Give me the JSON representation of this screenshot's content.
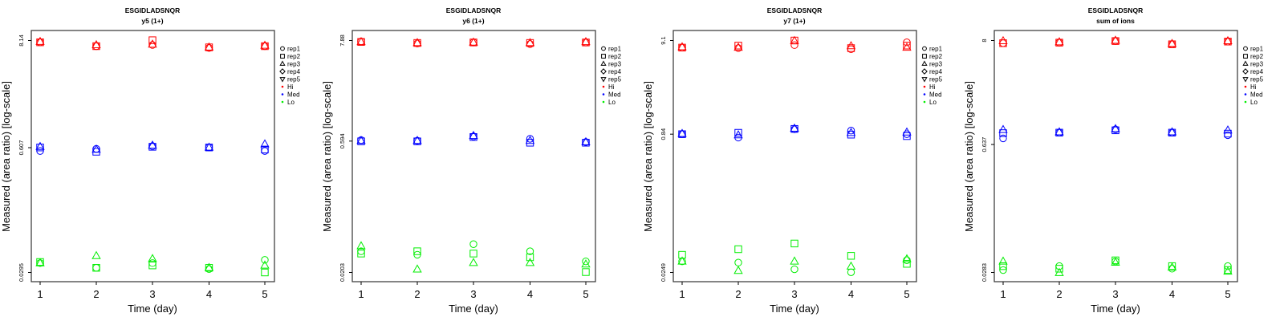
{
  "colors": {
    "Hi": "#ff0000",
    "Med": "#0000ff",
    "Lo": "#00ee00"
  },
  "legend": [
    {
      "label": "rep1",
      "symbol": "circle"
    },
    {
      "label": "rep2",
      "symbol": "square"
    },
    {
      "label": "rep3",
      "symbol": "triangle-up"
    },
    {
      "label": "rep4",
      "symbol": "diamond"
    },
    {
      "label": "rep5",
      "symbol": "triangle-down"
    },
    {
      "label": "Hi",
      "symbol": "dot",
      "group": "Hi"
    },
    {
      "label": "Med",
      "symbol": "dot",
      "group": "Med"
    },
    {
      "label": "Lo",
      "symbol": "dot",
      "group": "Lo"
    }
  ],
  "chart_data": [
    {
      "type": "scatter",
      "title": "ESGIDLADSNQR",
      "subtitle": "y5 (1+)",
      "xlabel": "Time (day)",
      "ylabel": "Measured (area ratio) [log-scale]",
      "yscale": "log",
      "x": [
        1,
        2,
        3,
        4,
        5
      ],
      "x_tick_labels": [
        "1",
        "2",
        "3",
        "4",
        "5"
      ],
      "y_ticks": [
        0.0295,
        0.607,
        8.14
      ],
      "y_tick_labels": [
        "0.0295",
        "0.607",
        "8.14"
      ],
      "legend_position": "right",
      "series": [
        {
          "group": "Hi",
          "rep": "rep1",
          "values": [
            7.8,
            7.1,
            7.3,
            6.8,
            7.1
          ]
        },
        {
          "group": "Hi",
          "rep": "rep2",
          "values": [
            7.8,
            7.1,
            8.2,
            6.9,
            7.1
          ]
        },
        {
          "group": "Hi",
          "rep": "rep3",
          "values": [
            7.9,
            7.3,
            7.4,
            6.9,
            7.2
          ]
        },
        {
          "group": "Med",
          "rep": "rep1",
          "values": [
            0.56,
            0.59,
            0.63,
            0.61,
            0.56
          ]
        },
        {
          "group": "Med",
          "rep": "rep2",
          "values": [
            0.61,
            0.55,
            0.62,
            0.61,
            0.58
          ]
        },
        {
          "group": "Med",
          "rep": "rep3",
          "values": [
            0.62,
            0.58,
            0.64,
            0.61,
            0.66
          ]
        },
        {
          "group": "Lo",
          "rep": "rep1",
          "values": [
            0.037,
            0.033,
            0.037,
            0.032,
            0.04
          ]
        },
        {
          "group": "Lo",
          "rep": "rep2",
          "values": [
            0.038,
            0.033,
            0.035,
            0.033,
            0.0295
          ]
        },
        {
          "group": "Lo",
          "rep": "rep3",
          "values": [
            0.037,
            0.044,
            0.041,
            0.033,
            0.035
          ]
        }
      ]
    },
    {
      "type": "scatter",
      "title": "ESGIDLADSNQR",
      "subtitle": "y6 (1+)",
      "xlabel": "Time (day)",
      "ylabel": "Measured (area ratio) [log-scale]",
      "yscale": "log",
      "x": [
        1,
        2,
        3,
        4,
        5
      ],
      "x_tick_labels": [
        "1",
        "2",
        "3",
        "4",
        "5"
      ],
      "y_ticks": [
        0.0203,
        0.594,
        7.88
      ],
      "y_tick_labels": [
        "0.0203",
        "0.594",
        "7.88"
      ],
      "legend_position": "right",
      "series": [
        {
          "group": "Hi",
          "rep": "rep1",
          "values": [
            7.7,
            7.3,
            7.5,
            7.2,
            7.5
          ]
        },
        {
          "group": "Hi",
          "rep": "rep2",
          "values": [
            7.6,
            7.4,
            7.5,
            7.4,
            7.5
          ]
        },
        {
          "group": "Hi",
          "rep": "rep3",
          "values": [
            7.6,
            7.4,
            7.5,
            7.4,
            7.6
          ]
        },
        {
          "group": "Med",
          "rep": "rep1",
          "values": [
            0.61,
            0.6,
            0.67,
            0.63,
            0.58
          ]
        },
        {
          "group": "Med",
          "rep": "rep2",
          "values": [
            0.59,
            0.59,
            0.66,
            0.57,
            0.57
          ]
        },
        {
          "group": "Med",
          "rep": "rep3",
          "values": [
            0.6,
            0.6,
            0.68,
            0.6,
            0.58
          ]
        },
        {
          "group": "Lo",
          "rep": "rep1",
          "values": [
            0.035,
            0.032,
            0.042,
            0.035,
            0.027
          ]
        },
        {
          "group": "Lo",
          "rep": "rep2",
          "values": [
            0.033,
            0.035,
            0.033,
            0.03,
            0.0205
          ]
        },
        {
          "group": "Lo",
          "rep": "rep3",
          "values": [
            0.04,
            0.022,
            0.026,
            0.026,
            0.025
          ]
        }
      ]
    },
    {
      "type": "scatter",
      "title": "ESGIDLADSNQR",
      "subtitle": "y7 (1+)",
      "xlabel": "Time (day)",
      "ylabel": "Measured (area ratio) [log-scale]",
      "yscale": "log",
      "x": [
        1,
        2,
        3,
        4,
        5
      ],
      "x_tick_labels": [
        "1",
        "2",
        "3",
        "4",
        "5"
      ],
      "y_ticks": [
        0.0249,
        0.84,
        9.1
      ],
      "y_tick_labels": [
        "0.0249",
        "0.84",
        "9.1"
      ],
      "legend_position": "right",
      "series": [
        {
          "group": "Hi",
          "rep": "rep1",
          "values": [
            7.6,
            7.5,
            8.1,
            7.3,
            8.7
          ]
        },
        {
          "group": "Hi",
          "rep": "rep2",
          "values": [
            7.6,
            8.0,
            9.1,
            7.5,
            8.0
          ]
        },
        {
          "group": "Hi",
          "rep": "rep3",
          "values": [
            7.7,
            7.6,
            9.0,
            7.9,
            7.6
          ]
        },
        {
          "group": "Med",
          "rep": "rep1",
          "values": [
            0.84,
            0.77,
            0.95,
            0.92,
            0.84
          ]
        },
        {
          "group": "Med",
          "rep": "rep2",
          "values": [
            0.84,
            0.87,
            0.96,
            0.83,
            0.8
          ]
        },
        {
          "group": "Med",
          "rep": "rep3",
          "values": [
            0.85,
            0.82,
            0.97,
            0.87,
            0.88
          ]
        },
        {
          "group": "Lo",
          "rep": "rep1",
          "values": [
            0.033,
            0.032,
            0.027,
            0.025,
            0.034
          ]
        },
        {
          "group": "Lo",
          "rep": "rep2",
          "values": [
            0.039,
            0.045,
            0.052,
            0.038,
            0.031
          ]
        },
        {
          "group": "Lo",
          "rep": "rep3",
          "values": [
            0.033,
            0.026,
            0.033,
            0.029,
            0.035
          ]
        }
      ]
    },
    {
      "type": "scatter",
      "title": "ESGIDLADSNQR",
      "subtitle": "sum of ions",
      "xlabel": "Time (day)",
      "ylabel": "Measured (area ratio) [log-scale]",
      "yscale": "log",
      "x": [
        1,
        2,
        3,
        4,
        5
      ],
      "x_tick_labels": [
        "1",
        "2",
        "3",
        "4",
        "5"
      ],
      "y_ticks": [
        0.0283,
        0.637,
        8
      ],
      "y_tick_labels": [
        "0.0283",
        "0.637",
        "8"
      ],
      "legend_position": "right",
      "series": [
        {
          "group": "Hi",
          "rep": "rep1",
          "values": [
            7.5,
            7.6,
            7.9,
            7.3,
            7.8
          ]
        },
        {
          "group": "Hi",
          "rep": "rep2",
          "values": [
            7.5,
            7.6,
            7.9,
            7.3,
            7.8
          ]
        },
        {
          "group": "Hi",
          "rep": "rep3",
          "values": [
            7.9,
            7.7,
            8.0,
            7.4,
            7.9
          ]
        },
        {
          "group": "Med",
          "rep": "rep1",
          "values": [
            0.74,
            0.85,
            0.92,
            0.85,
            0.8
          ]
        },
        {
          "group": "Med",
          "rep": "rep2",
          "values": [
            0.84,
            0.85,
            0.9,
            0.85,
            0.83
          ]
        },
        {
          "group": "Med",
          "rep": "rep3",
          "values": [
            0.91,
            0.86,
            0.93,
            0.86,
            0.9
          ]
        },
        {
          "group": "Lo",
          "rep": "rep1",
          "values": [
            0.03,
            0.033,
            0.037,
            0.031,
            0.033
          ]
        },
        {
          "group": "Lo",
          "rep": "rep2",
          "values": [
            0.033,
            0.031,
            0.038,
            0.033,
            0.03
          ]
        },
        {
          "group": "Lo",
          "rep": "rep3",
          "values": [
            0.037,
            0.028,
            0.036,
            0.032,
            0.029
          ]
        }
      ]
    }
  ]
}
